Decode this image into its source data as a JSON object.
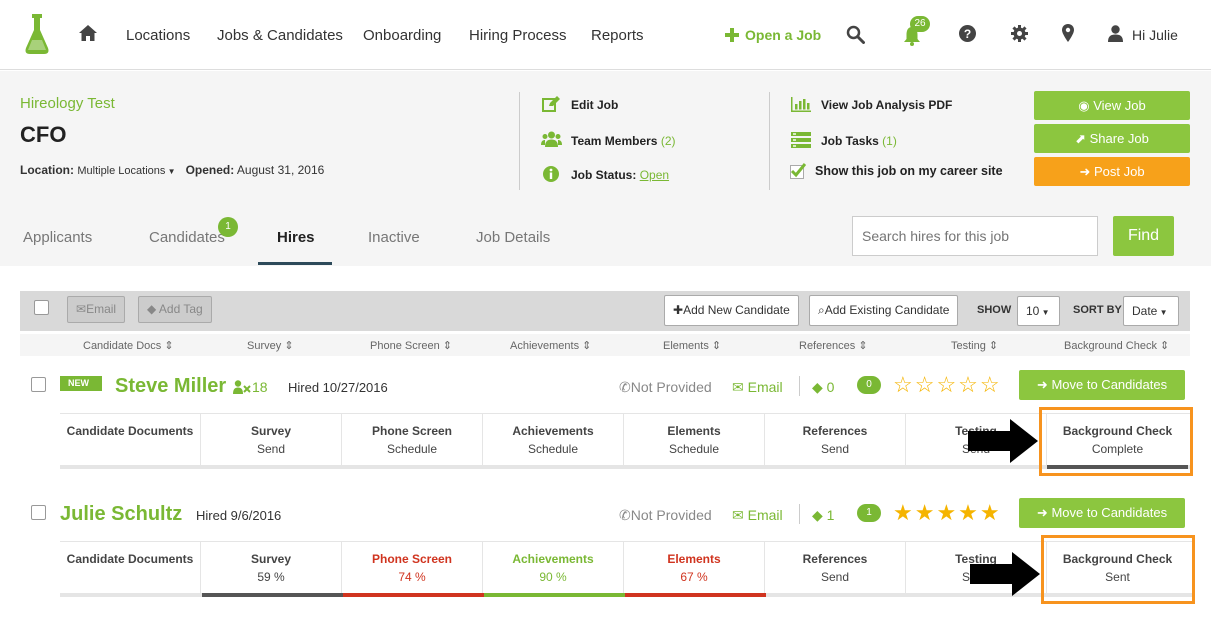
{
  "nav": {
    "links": [
      "Locations",
      "Jobs & Candidates",
      "Onboarding",
      "Hiring Process",
      "Reports"
    ],
    "open_job": "Open a Job",
    "notifications": "26",
    "greeting": "Hi Julie"
  },
  "job": {
    "company": "Hireology Test",
    "title": "CFO",
    "location_label": "Location:",
    "location_value": "Multiple Locations",
    "opened_label": "Opened:",
    "opened_value": "August 31, 2016"
  },
  "actions": {
    "edit_job": "Edit Job",
    "team_members": "Team Members",
    "team_count": "(2)",
    "job_status": "Job Status:",
    "job_status_value": "Open",
    "view_analysis": "View Job Analysis PDF",
    "job_tasks": "Job Tasks",
    "job_tasks_count": "(1)",
    "show_career": "Show this job on my career site"
  },
  "buttons": {
    "view_job": "View Job",
    "share_job": "Share Job",
    "post_job": "Post Job"
  },
  "tabs": [
    "Applicants",
    "Candidates",
    "Hires",
    "Inactive",
    "Job Details"
  ],
  "candidates_badge": "1",
  "search": {
    "placeholder": "Search hires for this job",
    "find": "Find"
  },
  "toolbar": {
    "email": "Email",
    "add_tag": "Add Tag",
    "add_new": "Add New Candidate",
    "add_existing": "Add Existing Candidate",
    "show_label": "SHOW",
    "show_value": "10",
    "sort_label": "SORT BY",
    "sort_value": "Date"
  },
  "columns": [
    "Candidate Docs",
    "Survey",
    "Phone Screen",
    "Achievements",
    "Elements",
    "References",
    "Testing",
    "Background Check"
  ],
  "hires": [
    {
      "new_tag": "NEW",
      "name": "Steve Miller",
      "score": "18",
      "hired": "Hired 10/27/2016",
      "phone": "Not Provided",
      "email": "Email",
      "tags": "0",
      "comments": "0",
      "rating": 0,
      "move": "Move to Candidates",
      "stages": [
        {
          "title": "Candidate Documents",
          "status": ""
        },
        {
          "title": "Survey",
          "status": "Send"
        },
        {
          "title": "Phone Screen",
          "status": "Schedule"
        },
        {
          "title": "Achievements",
          "status": "Schedule"
        },
        {
          "title": "Elements",
          "status": "Schedule"
        },
        {
          "title": "References",
          "status": "Send"
        },
        {
          "title": "Testing",
          "status": "Send"
        },
        {
          "title": "Background Check",
          "status": "Complete"
        }
      ]
    },
    {
      "name": "Julie Schultz",
      "hired": "Hired 9/6/2016",
      "phone": "Not Provided",
      "email": "Email",
      "tags": "1",
      "comments": "1",
      "rating": 5,
      "move": "Move to Candidates",
      "stages": [
        {
          "title": "Candidate Documents",
          "status": ""
        },
        {
          "title": "Survey",
          "status": "59 %"
        },
        {
          "title": "Phone Screen",
          "status": "74 %"
        },
        {
          "title": "Achievements",
          "status": "90 %"
        },
        {
          "title": "Elements",
          "status": "67 %"
        },
        {
          "title": "References",
          "status": "Send"
        },
        {
          "title": "Testing",
          "status": "Send"
        },
        {
          "title": "Background Check",
          "status": "Sent"
        }
      ]
    }
  ],
  "colors": {
    "green": "#7ab834",
    "button_green": "#8cc63f",
    "orange": "#f7a11a",
    "red": "#d0341f",
    "highlight": "#f7931e",
    "dark_bar": "#555555"
  }
}
